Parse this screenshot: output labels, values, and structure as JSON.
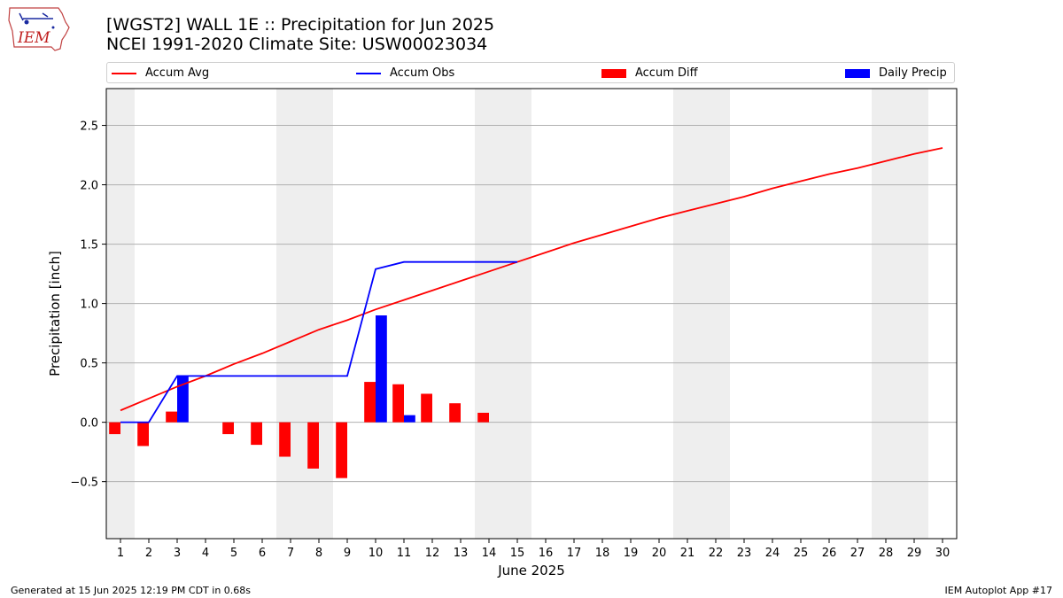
{
  "header": {
    "title_line1": "[WGST2] WALL 1E :: Precipitation for Jun 2025",
    "title_line2": "NCEI 1991-2020 Climate Site: USW00023034"
  },
  "logo": {
    "text": "IEM",
    "icon": "iem-iowa-logo"
  },
  "legend": {
    "accum_avg": "Accum Avg",
    "accum_obs": "Accum Obs",
    "accum_diff": "Accum Diff",
    "daily_precip": "Daily Precip"
  },
  "colors": {
    "avg": "#ff0000",
    "obs": "#0000ff",
    "diff": "#ff0000",
    "daily": "#0000ff",
    "weekend": "#eeeeee",
    "grid": "#b0b0b0"
  },
  "footer": {
    "left": "Generated at 15 Jun 2025 12:19 PM CDT in 0.68s",
    "right": "IEM Autoplot App #17"
  },
  "chart_data": {
    "type": "bar",
    "xlabel": "June 2025",
    "ylabel": "Precipitation [inch]",
    "xlim": [
      0.5,
      30.5
    ],
    "ylim": [
      -0.98,
      2.81
    ],
    "yticks": [
      -0.5,
      0.0,
      0.5,
      1.0,
      1.5,
      2.0,
      2.5
    ],
    "ytick_labels": [
      "−0.5",
      "0.0",
      "0.5",
      "1.0",
      "1.5",
      "2.0",
      "2.5"
    ],
    "categories": [
      "1",
      "2",
      "3",
      "4",
      "5",
      "6",
      "7",
      "8",
      "9",
      "10",
      "11",
      "12",
      "13",
      "14",
      "15",
      "16",
      "17",
      "18",
      "19",
      "20",
      "21",
      "22",
      "23",
      "24",
      "25",
      "26",
      "27",
      "28",
      "29",
      "30"
    ],
    "grid": "horizontal",
    "weekend_shading": [
      [
        0.5,
        1.5
      ],
      [
        6.5,
        8.5
      ],
      [
        13.5,
        15.5
      ],
      [
        20.5,
        22.5
      ],
      [
        27.5,
        29.5
      ]
    ],
    "series": [
      {
        "name": "Accum Avg",
        "kind": "line",
        "x": [
          1,
          2,
          3,
          4,
          5,
          6,
          7,
          8,
          9,
          10,
          11,
          12,
          13,
          14,
          15,
          16,
          17,
          18,
          19,
          20,
          21,
          22,
          23,
          24,
          25,
          26,
          27,
          28,
          29,
          30
        ],
        "values": [
          0.1,
          0.2,
          0.3,
          0.39,
          0.49,
          0.58,
          0.68,
          0.78,
          0.86,
          0.95,
          1.03,
          1.11,
          1.19,
          1.27,
          1.35,
          1.43,
          1.51,
          1.58,
          1.65,
          1.72,
          1.78,
          1.84,
          1.9,
          1.97,
          2.03,
          2.09,
          2.14,
          2.2,
          2.26,
          2.31
        ]
      },
      {
        "name": "Accum Obs",
        "kind": "line",
        "x": [
          1,
          2,
          3,
          4,
          5,
          6,
          7,
          8,
          9,
          10,
          11,
          12,
          13,
          14,
          15
        ],
        "values": [
          0.0,
          0.0,
          0.39,
          0.39,
          0.39,
          0.39,
          0.39,
          0.39,
          0.39,
          1.29,
          1.35,
          1.35,
          1.35,
          1.35,
          1.35
        ]
      },
      {
        "name": "Accum Diff",
        "kind": "bar",
        "x": [
          1,
          2,
          3,
          4,
          5,
          6,
          7,
          8,
          9,
          10,
          11,
          12,
          13,
          14
        ],
        "values": [
          -0.1,
          -0.2,
          0.09,
          0.0,
          -0.1,
          -0.19,
          -0.29,
          -0.39,
          -0.47,
          0.34,
          0.32,
          0.24,
          0.16,
          0.08
        ]
      },
      {
        "name": "Daily Precip",
        "kind": "bar",
        "x": [
          1,
          2,
          3,
          4,
          5,
          6,
          7,
          8,
          9,
          10,
          11,
          12,
          13,
          14,
          15
        ],
        "values": [
          0,
          0,
          0.39,
          0,
          0,
          0,
          0,
          0,
          0,
          0.9,
          0.06,
          0,
          0,
          0,
          0
        ]
      }
    ]
  }
}
